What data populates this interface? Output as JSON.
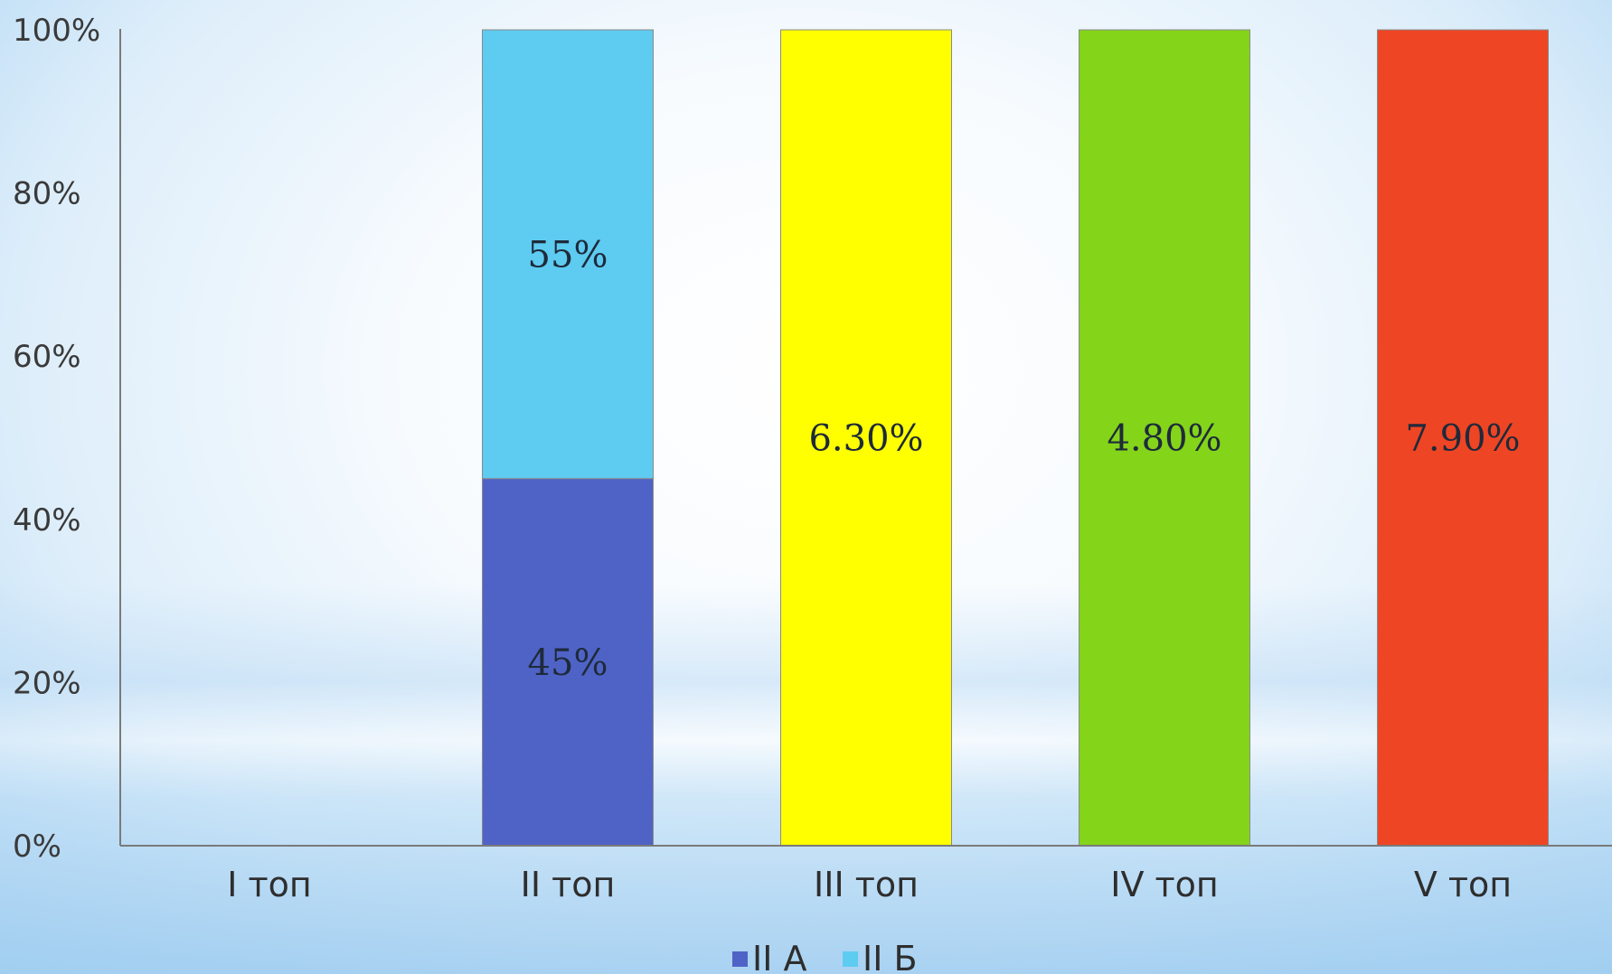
{
  "chart_data": {
    "type": "bar",
    "stacked": "percent",
    "categories": [
      "I топ",
      "II топ",
      "III топ",
      "IV топ",
      "V топ"
    ],
    "y_ticks": [
      "0%",
      "20%",
      "40%",
      "60%",
      "80%",
      "100%"
    ],
    "ylim": [
      0,
      100
    ],
    "grid": false,
    "legend_position": "bottom",
    "legend": [
      {
        "name": "II А",
        "color": "#4f63c6"
      },
      {
        "name": "II Б",
        "color": "#5ecbf1"
      }
    ],
    "segments": [
      {
        "category": "II топ",
        "start": 0,
        "end": 45,
        "label": "45%",
        "color": "#4f63c6"
      },
      {
        "category": "II топ",
        "start": 45,
        "end": 100,
        "label": "55%",
        "color": "#5ecbf1"
      },
      {
        "category": "III топ",
        "start": 0,
        "end": 100,
        "label": "6.30%",
        "color": "#ffff00"
      },
      {
        "category": "IV топ",
        "start": 0,
        "end": 100,
        "label": "4.80%",
        "color": "#84d41a"
      },
      {
        "category": "V топ",
        "start": 0,
        "end": 100,
        "label": "7.90%",
        "color": "#ee4524"
      }
    ]
  }
}
